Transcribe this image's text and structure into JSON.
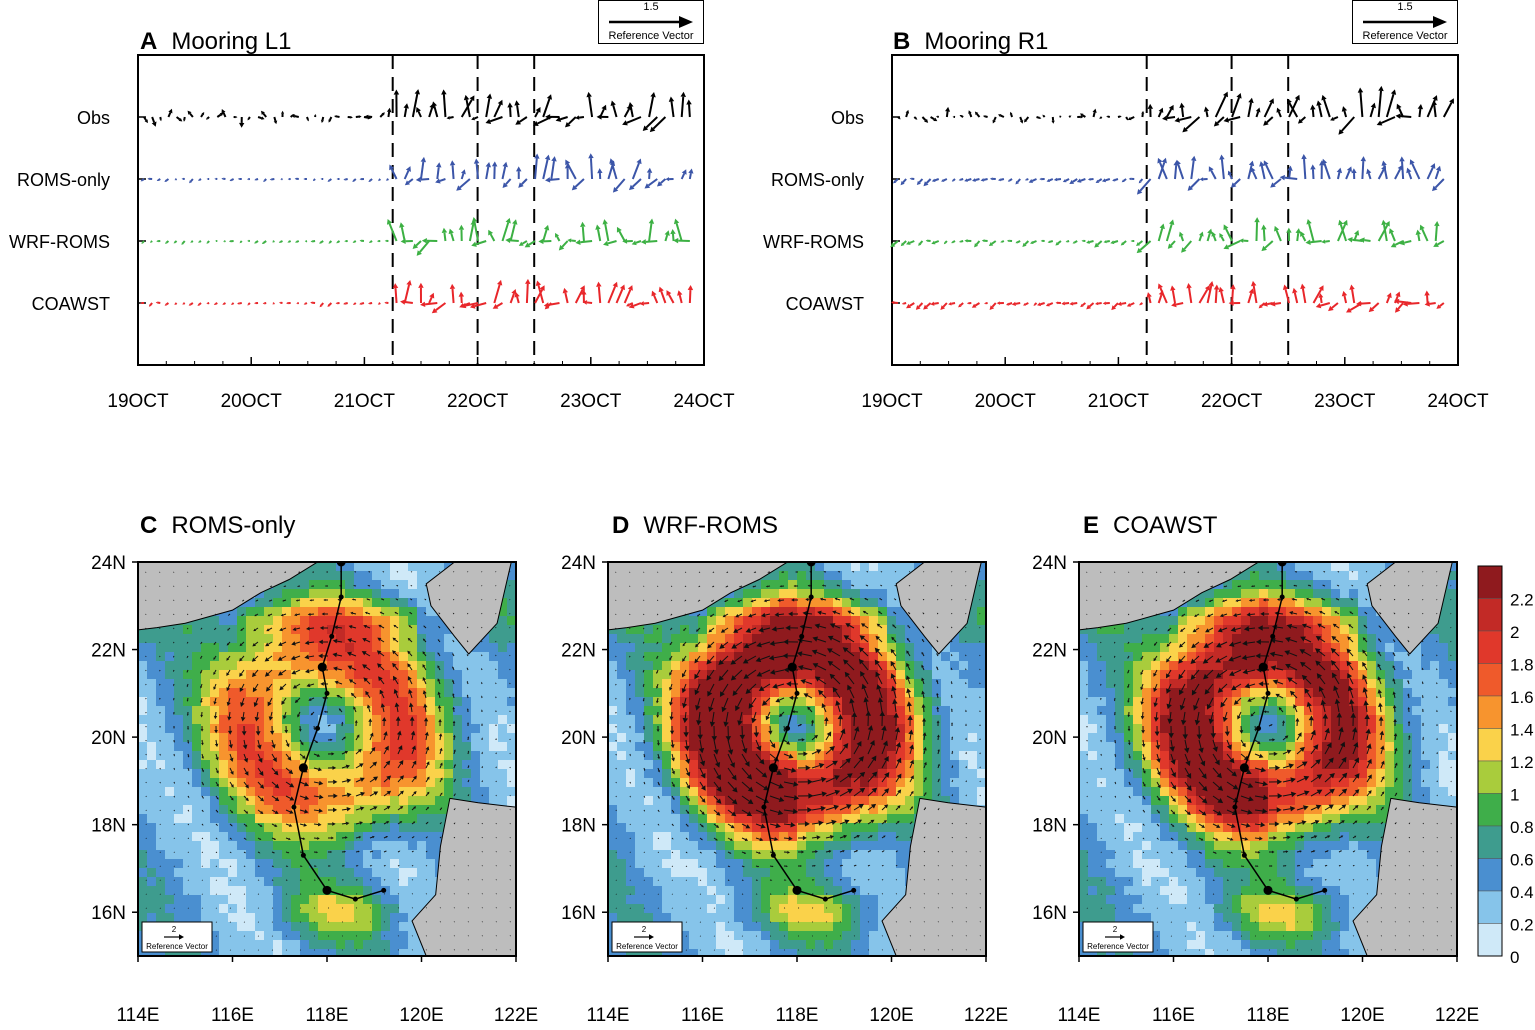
{
  "chart_data": [
    {
      "type": "vector-timeseries",
      "panel": "A",
      "title": "Mooring L1",
      "x": {
        "ticks": [
          "19OCT",
          "20OCT",
          "21OCT",
          "22OCT",
          "23OCT",
          "24OCT"
        ],
        "range_days": [
          0,
          5
        ]
      },
      "rows": [
        "Obs",
        "ROMS-only",
        "WRF-ROMS",
        "COAWST"
      ],
      "row_colors": [
        "#000000",
        "#3b55a8",
        "#3cb043",
        "#e8262a"
      ],
      "dashed_lines_days": [
        2.25,
        3.0,
        3.5
      ],
      "reference_vector": {
        "value": "1.5",
        "label": "Reference Vector"
      }
    },
    {
      "type": "vector-timeseries",
      "panel": "B",
      "title": "Mooring R1",
      "x": {
        "ticks": [
          "19OCT",
          "20OCT",
          "21OCT",
          "22OCT",
          "23OCT",
          "24OCT"
        ],
        "range_days": [
          0,
          5
        ]
      },
      "rows": [
        "Obs",
        "ROMS-only",
        "WRF-ROMS",
        "COAWST"
      ],
      "row_colors": [
        "#000000",
        "#3b55a8",
        "#3cb043",
        "#e8262a"
      ],
      "dashed_lines_days": [
        2.25,
        3.0,
        3.5
      ],
      "reference_vector": {
        "value": "1.5",
        "label": "Reference Vector"
      }
    },
    {
      "type": "heatmap",
      "panel": "C",
      "title": "ROMS-only",
      "xticks": [
        "114E",
        "116E",
        "118E",
        "120E",
        "122E"
      ],
      "yticks": [
        "24N",
        "22N",
        "20N",
        "18N",
        "16N"
      ],
      "lon_range": [
        114,
        122
      ],
      "lat_range": [
        15,
        24
      ],
      "reference_vector": {
        "value": "2",
        "label": "Reference Vector"
      }
    },
    {
      "type": "heatmap",
      "panel": "D",
      "title": "WRF-ROMS",
      "xticks": [
        "114E",
        "116E",
        "118E",
        "120E",
        "122E"
      ],
      "yticks": [
        "24N",
        "22N",
        "20N",
        "18N",
        "16N"
      ],
      "lon_range": [
        114,
        122
      ],
      "lat_range": [
        15,
        24
      ],
      "reference_vector": {
        "value": "2",
        "label": "Reference Vector"
      }
    },
    {
      "type": "heatmap",
      "panel": "E",
      "title": "COAWST",
      "xticks": [
        "114E",
        "116E",
        "118E",
        "120E",
        "122E"
      ],
      "yticks": [
        "24N",
        "22N",
        "20N",
        "18N",
        "16N"
      ],
      "lon_range": [
        114,
        122
      ],
      "lat_range": [
        15,
        24
      ],
      "reference_vector": {
        "value": "2",
        "label": "Reference Vector"
      }
    }
  ],
  "colorbar": {
    "labels": [
      "2.2",
      "2",
      "1.8",
      "1.6",
      "1.4",
      "1.2",
      "1",
      "0.8",
      "0.6",
      "0.4",
      "0.2",
      "0"
    ],
    "colors": [
      "#8f1a1e",
      "#c22a26",
      "#e0382b",
      "#ef5a2b",
      "#f7942e",
      "#fad24a",
      "#a9cc3c",
      "#3fae4a",
      "#3e9c8e",
      "#4a8fd0",
      "#86c4ea",
      "#cfe9f8"
    ]
  },
  "panels": {
    "a": {
      "letter": "A",
      "title": "Mooring L1",
      "ref_value": "1.5",
      "ref_label": "Reference Vector"
    },
    "b": {
      "letter": "B",
      "title": "Mooring R1",
      "ref_value": "1.5",
      "ref_label": "Reference Vector"
    },
    "c": {
      "letter": "C",
      "title": "ROMS-only",
      "ref_value": "2",
      "ref_label": "Reference Vector"
    },
    "d": {
      "letter": "D",
      "title": "WRF-ROMS",
      "ref_value": "2",
      "ref_label": "Reference Vector"
    },
    "e": {
      "letter": "E",
      "title": "COAWST",
      "ref_value": "2",
      "ref_label": "Reference Vector"
    }
  },
  "row_labels": [
    "Obs",
    "ROMS-only",
    "WRF-ROMS",
    "COAWST"
  ],
  "time_ticks": [
    "19OCT",
    "20OCT",
    "21OCT",
    "22OCT",
    "23OCT",
    "24OCT"
  ],
  "lon_ticks": [
    "114E",
    "116E",
    "118E",
    "120E",
    "122E"
  ],
  "lat_ticks": [
    "24N",
    "22N",
    "20N",
    "18N",
    "16N"
  ]
}
